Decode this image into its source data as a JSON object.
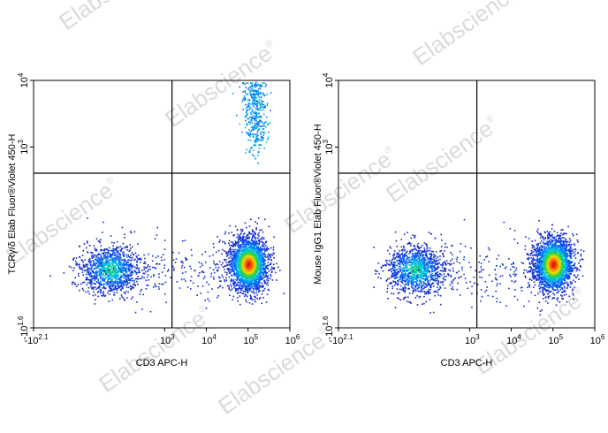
{
  "watermark": {
    "text": "Elabscience",
    "mark": "®"
  },
  "chart_data": [
    {
      "type": "scatter",
      "style": "flow cytometry pseudocolor density dot plot",
      "xlabel": "CD3 APC-H",
      "ylabel": "TCRγ/δ Elab Fluor®Violet 450-H",
      "x_scale": "biexponential (log)",
      "y_scale": "biexponential (log)",
      "xlim": [
        -126,
        1000000
      ],
      "ylim": [
        -40,
        10000
      ],
      "x_ticks": [
        {
          "value": -126,
          "base": "-10",
          "exp": "2.1"
        },
        {
          "value": 1000,
          "base": "10",
          "exp": "3"
        },
        {
          "value": 10000,
          "base": "10",
          "exp": "4"
        },
        {
          "value": 100000,
          "base": "10",
          "exp": "5"
        },
        {
          "value": 1000000,
          "base": "10",
          "exp": "6"
        }
      ],
      "y_ticks": [
        {
          "value": -40,
          "base": "-10",
          "exp": "1.6"
        },
        {
          "value": 1000,
          "base": "10",
          "exp": "3"
        },
        {
          "value": 10000,
          "base": "10",
          "exp": "4"
        }
      ],
      "quadrant_gate": {
        "x": 1500,
        "y": 400
      },
      "populations": [
        {
          "label": "CD3- TCRγ/δ-",
          "x_center": 40,
          "y_center": 5,
          "density": "medium"
        },
        {
          "label": "CD3+ TCRγ/δ-",
          "x_center": 100000,
          "y_center": 8,
          "density": "high"
        },
        {
          "label": "CD3+ TCRγ/δ+",
          "x_center": 150000,
          "y_center": 2500,
          "density": "medium"
        }
      ],
      "grid": false,
      "legend": "none"
    },
    {
      "type": "scatter",
      "style": "flow cytometry pseudocolor density dot plot",
      "xlabel": "CD3 APC-H",
      "ylabel": "Mouse IgG1 Elab Fluor®Violet 450-H",
      "x_scale": "biexponential (log)",
      "y_scale": "biexponential (log)",
      "xlim": [
        -126,
        1000000
      ],
      "ylim": [
        -40,
        10000
      ],
      "x_ticks": [
        {
          "value": -126,
          "base": "-10",
          "exp": "2.1"
        },
        {
          "value": 1000,
          "base": "10",
          "exp": "3"
        },
        {
          "value": 10000,
          "base": "10",
          "exp": "4"
        },
        {
          "value": 100000,
          "base": "10",
          "exp": "5"
        },
        {
          "value": 1000000,
          "base": "10",
          "exp": "6"
        }
      ],
      "y_ticks": [
        {
          "value": -40,
          "base": "-10",
          "exp": "1.6"
        },
        {
          "value": 1000,
          "base": "10",
          "exp": "3"
        },
        {
          "value": 10000,
          "base": "10",
          "exp": "4"
        }
      ],
      "quadrant_gate": {
        "x": 1500,
        "y": 400
      },
      "populations": [
        {
          "label": "CD3- isotype",
          "x_center": 40,
          "y_center": 5,
          "density": "medium"
        },
        {
          "label": "CD3+ isotype",
          "x_center": 100000,
          "y_center": 8,
          "density": "high"
        }
      ],
      "grid": false,
      "legend": "none"
    }
  ]
}
